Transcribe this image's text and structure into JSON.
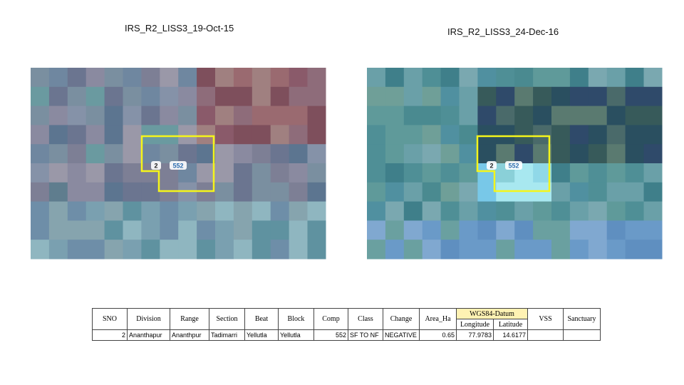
{
  "left_image": {
    "title": "IRS_R2_LISS3_19-Oct-15",
    "labels": [
      "2",
      "552"
    ]
  },
  "right_image": {
    "title": "IRS_R2_LISS3_24-Dec-16",
    "labels": [
      "2",
      "552"
    ]
  },
  "table": {
    "group_header": "WGS84-Datum",
    "headers": [
      "SNO",
      "Division",
      "Range",
      "Section",
      "Beat",
      "Block",
      "Comp",
      "Class",
      "Change",
      "Area_Ha",
      "Longitude",
      "Latitude",
      "VSS",
      "Sanctuary"
    ],
    "rows": [
      [
        "2",
        "Ananthapur",
        "Ananthpur",
        "Tadimarri",
        "Yellutla",
        "Yellutla",
        "552",
        "SF TO NF",
        "NEGATIVE",
        "0.65",
        "77.9783",
        "14.6177"
      ]
    ]
  }
}
